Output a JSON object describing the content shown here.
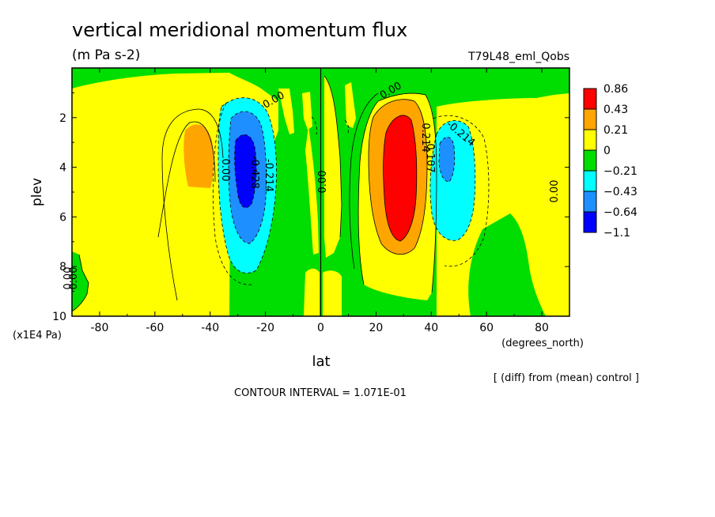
{
  "chart_data": {
    "type": "contour",
    "title": "vertical meridional momentum flux",
    "subtitle": "(m Pa s-2)",
    "run_label": "T79L48_eml_Qobs",
    "xlabel": "lat",
    "xunit": "(degrees_north)",
    "ylabel": "plev",
    "yunit": "(x1E4 Pa)",
    "xlim": [
      -90,
      90
    ],
    "ylim": [
      10,
      0
    ],
    "xticks": [
      "-80",
      "-60",
      "-40",
      "-20",
      "0",
      "20",
      "40",
      "60",
      "80"
    ],
    "yticks": [
      "2",
      "4",
      "6",
      "8",
      "10"
    ],
    "diff_note": "[ (diff) from (mean) control ]",
    "contour_interval": "CONTOUR INTERVAL = 1.071E-01",
    "contour_labels": [
      "0.00",
      "0.00",
      "0.00",
      "0.00",
      "0.00",
      "0.00",
      "0.00",
      "-0.214",
      "-0.214",
      "-0.428",
      "0.214",
      "0.107"
    ],
    "legend": {
      "labels": [
        "0.86",
        "0.43",
        "0.21",
        "0",
        "−0.21",
        "−0.43",
        "−0.64",
        "−1.1"
      ],
      "colors": [
        "#ff0000",
        "#ffa500",
        "#ffff00",
        "#00dd00",
        "#00ffff",
        "#1e8fff",
        "#0000ff"
      ]
    },
    "features": [
      {
        "type": "max",
        "lat": -45,
        "plev": 3.6,
        "level": "0.21"
      },
      {
        "type": "min",
        "lat": -29,
        "plev": 4.2,
        "level": "-1.1"
      },
      {
        "type": "max",
        "lat": 30,
        "plev": 4.2,
        "level": "0.86"
      },
      {
        "type": "min",
        "lat": 45,
        "plev": 3.5,
        "level": "-0.64"
      }
    ]
  }
}
